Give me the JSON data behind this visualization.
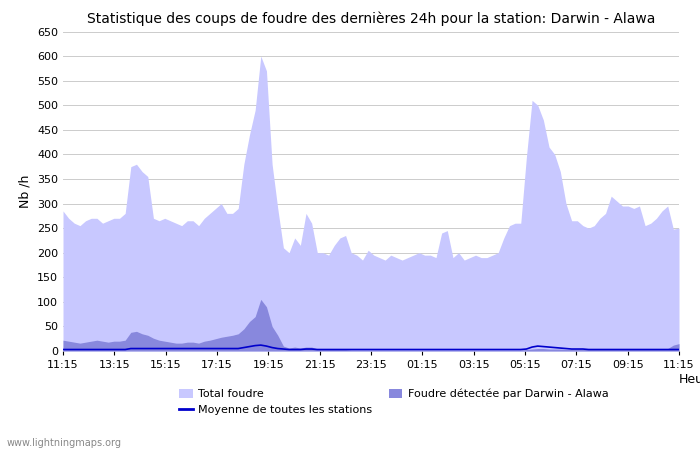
{
  "title": "Statistique des coups de foudre des dernières 24h pour la station: Darwin - Alawa",
  "ylabel": "Nb /h",
  "xlabel": "Heure",
  "ylim": [
    0,
    650
  ],
  "yticks": [
    0,
    50,
    100,
    150,
    200,
    250,
    300,
    350,
    400,
    450,
    500,
    550,
    600,
    650
  ],
  "x_labels": [
    "11:15",
    "13:15",
    "15:15",
    "17:15",
    "19:15",
    "21:15",
    "23:15",
    "01:15",
    "03:15",
    "05:15",
    "07:15",
    "09:15",
    "11:15"
  ],
  "bg_color": "#ffffff",
  "grid_color": "#cccccc",
  "fill_total_color": "#c8c8ff",
  "fill_local_color": "#8888dd",
  "line_moyenne_color": "#0000cc",
  "watermark": "www.lightningmaps.org",
  "total_foudre": [
    285,
    270,
    260,
    255,
    265,
    270,
    270,
    260,
    265,
    270,
    270,
    280,
    375,
    380,
    365,
    355,
    270,
    265,
    270,
    265,
    260,
    255,
    265,
    265,
    255,
    270,
    280,
    290,
    300,
    280,
    280,
    290,
    380,
    440,
    490,
    600,
    570,
    380,
    290,
    210,
    200,
    230,
    215,
    280,
    260,
    200,
    200,
    195,
    215,
    230,
    235,
    200,
    195,
    185,
    205,
    195,
    190,
    185,
    195,
    190,
    185,
    190,
    195,
    200,
    195,
    195,
    190,
    240,
    245,
    190,
    200,
    185,
    190,
    195,
    190,
    190,
    195,
    200,
    230,
    255,
    260,
    260,
    395,
    510,
    500,
    470,
    415,
    400,
    365,
    300,
    265,
    265,
    255,
    250,
    255,
    270,
    280,
    315,
    305,
    295,
    295,
    290,
    295,
    255,
    260,
    270,
    285,
    295,
    248,
    250
  ],
  "local_foudre": [
    22,
    20,
    18,
    16,
    18,
    20,
    22,
    20,
    18,
    20,
    20,
    22,
    38,
    40,
    35,
    32,
    26,
    22,
    20,
    18,
    16,
    16,
    18,
    18,
    16,
    20,
    22,
    25,
    28,
    30,
    32,
    35,
    45,
    60,
    70,
    105,
    90,
    50,
    32,
    10,
    6,
    8,
    6,
    8,
    8,
    4,
    3,
    3,
    3,
    3,
    3,
    2,
    2,
    2,
    2,
    2,
    2,
    2,
    2,
    2,
    2,
    2,
    2,
    2,
    2,
    2,
    2,
    2,
    2,
    2,
    2,
    2,
    2,
    2,
    2,
    2,
    2,
    2,
    2,
    2,
    2,
    2,
    3,
    4,
    5,
    5,
    4,
    4,
    4,
    3,
    3,
    3,
    3,
    3,
    3,
    3,
    3,
    3,
    3,
    3,
    3,
    3,
    3,
    3,
    3,
    3,
    4,
    5,
    12,
    15
  ],
  "moyenne": [
    3,
    3,
    3,
    3,
    3,
    3,
    3,
    3,
    3,
    3,
    3,
    3,
    5,
    5,
    5,
    5,
    5,
    5,
    5,
    5,
    5,
    5,
    5,
    5,
    5,
    5,
    5,
    5,
    5,
    5,
    5,
    5,
    7,
    9,
    11,
    12,
    10,
    7,
    5,
    4,
    3,
    3,
    3,
    4,
    4,
    3,
    3,
    3,
    3,
    3,
    3,
    3,
    3,
    3,
    3,
    3,
    3,
    3,
    3,
    3,
    3,
    3,
    3,
    3,
    3,
    3,
    3,
    3,
    3,
    3,
    3,
    3,
    3,
    3,
    3,
    3,
    3,
    3,
    3,
    3,
    3,
    3,
    4,
    8,
    10,
    9,
    8,
    7,
    6,
    5,
    4,
    4,
    4,
    3,
    3,
    3,
    3,
    3,
    3,
    3,
    3,
    3,
    3,
    3,
    3,
    3,
    3,
    3,
    3,
    3
  ]
}
